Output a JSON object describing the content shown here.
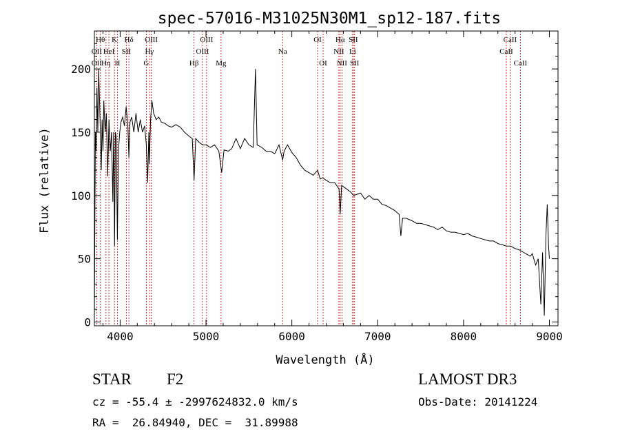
{
  "chart_data": {
    "type": "line",
    "title": "spec-57016-M31025N30M1_sp12-187.fits",
    "xlabel": "Wavelength (Å)",
    "ylabel": "Flux (relative)",
    "xlim": [
      3700,
      9100
    ],
    "ylim": [
      -3,
      230
    ],
    "xticks": [
      4000,
      5000,
      6000,
      7000,
      8000,
      9000
    ],
    "yticks": [
      0,
      50,
      100,
      150,
      200
    ],
    "grid": false,
    "series": [
      {
        "color": "#000000",
        "points": [
          [
            3700,
            4
          ],
          [
            3705,
            70
          ],
          [
            3712,
            150
          ],
          [
            3720,
            135
          ],
          [
            3730,
            185
          ],
          [
            3740,
            150
          ],
          [
            3750,
            200
          ],
          [
            3760,
            175
          ],
          [
            3770,
            150
          ],
          [
            3780,
            120
          ],
          [
            3790,
            160
          ],
          [
            3800,
            135
          ],
          [
            3810,
            175
          ],
          [
            3825,
            150
          ],
          [
            3840,
            165
          ],
          [
            3855,
            115
          ],
          [
            3870,
            160
          ],
          [
            3885,
            135
          ],
          [
            3900,
            150
          ],
          [
            3915,
            95
          ],
          [
            3925,
            150
          ],
          [
            3935,
            60
          ],
          [
            3945,
            150
          ],
          [
            3955,
            145
          ],
          [
            3968,
            65
          ],
          [
            3980,
            135
          ],
          [
            3995,
            150
          ],
          [
            4010,
            158
          ],
          [
            4030,
            162
          ],
          [
            4050,
            155
          ],
          [
            4070,
            170
          ],
          [
            4090,
            155
          ],
          [
            4102,
            130
          ],
          [
            4115,
            158
          ],
          [
            4135,
            162
          ],
          [
            4160,
            150
          ],
          [
            4185,
            165
          ],
          [
            4210,
            150
          ],
          [
            4235,
            160
          ],
          [
            4260,
            150
          ],
          [
            4285,
            155
          ],
          [
            4305,
            140
          ],
          [
            4320,
            110
          ],
          [
            4335,
            150
          ],
          [
            4340,
            125
          ],
          [
            4355,
            160
          ],
          [
            4370,
            175
          ],
          [
            4390,
            165
          ],
          [
            4420,
            160
          ],
          [
            4450,
            162
          ],
          [
            4480,
            158
          ],
          [
            4520,
            157
          ],
          [
            4560,
            155
          ],
          [
            4600,
            154
          ],
          [
            4650,
            156
          ],
          [
            4700,
            154
          ],
          [
            4750,
            150
          ],
          [
            4800,
            147
          ],
          [
            4840,
            145
          ],
          [
            4861,
            112
          ],
          [
            4880,
            145
          ],
          [
            4920,
            142
          ],
          [
            4960,
            140
          ],
          [
            5000,
            140
          ],
          [
            5050,
            138
          ],
          [
            5100,
            140
          ],
          [
            5150,
            135
          ],
          [
            5183,
            118
          ],
          [
            5210,
            136
          ],
          [
            5260,
            135
          ],
          [
            5300,
            137
          ],
          [
            5350,
            145
          ],
          [
            5400,
            137
          ],
          [
            5450,
            145
          ],
          [
            5500,
            140
          ],
          [
            5550,
            138
          ],
          [
            5577,
            200
          ],
          [
            5595,
            140
          ],
          [
            5650,
            138
          ],
          [
            5700,
            135
          ],
          [
            5750,
            135
          ],
          [
            5800,
            133
          ],
          [
            5850,
            140
          ],
          [
            5893,
            128
          ],
          [
            5910,
            135
          ],
          [
            5950,
            140
          ],
          [
            6000,
            134
          ],
          [
            6050,
            130
          ],
          [
            6100,
            124
          ],
          [
            6150,
            120
          ],
          [
            6200,
            118
          ],
          [
            6250,
            116
          ],
          [
            6300,
            120
          ],
          [
            6330,
            113
          ],
          [
            6360,
            114
          ],
          [
            6400,
            112
          ],
          [
            6450,
            110
          ],
          [
            6500,
            110
          ],
          [
            6550,
            105
          ],
          [
            6563,
            85
          ],
          [
            6580,
            108
          ],
          [
            6620,
            106
          ],
          [
            6680,
            103
          ],
          [
            6720,
            100
          ],
          [
            6760,
            101
          ],
          [
            6800,
            102
          ],
          [
            6850,
            97
          ],
          [
            6900,
            100
          ],
          [
            6950,
            97
          ],
          [
            7000,
            97
          ],
          [
            7050,
            93
          ],
          [
            7100,
            92
          ],
          [
            7150,
            90
          ],
          [
            7200,
            88
          ],
          [
            7250,
            85
          ],
          [
            7270,
            68
          ],
          [
            7290,
            82
          ],
          [
            7330,
            82
          ],
          [
            7400,
            80
          ],
          [
            7450,
            78
          ],
          [
            7500,
            78
          ],
          [
            7550,
            77
          ],
          [
            7600,
            76
          ],
          [
            7650,
            75
          ],
          [
            7700,
            73
          ],
          [
            7750,
            75
          ],
          [
            7800,
            72
          ],
          [
            7850,
            71
          ],
          [
            7900,
            71
          ],
          [
            7950,
            70
          ],
          [
            8000,
            69
          ],
          [
            8050,
            70
          ],
          [
            8100,
            68
          ],
          [
            8150,
            67
          ],
          [
            8200,
            66
          ],
          [
            8250,
            65
          ],
          [
            8300,
            64
          ],
          [
            8350,
            64
          ],
          [
            8400,
            62
          ],
          [
            8450,
            61
          ],
          [
            8500,
            60
          ],
          [
            8550,
            60
          ],
          [
            8600,
            58
          ],
          [
            8650,
            57
          ],
          [
            8700,
            55
          ],
          [
            8750,
            53
          ],
          [
            8780,
            52
          ],
          [
            8800,
            54
          ],
          [
            8840,
            45
          ],
          [
            8870,
            50
          ],
          [
            8900,
            14
          ],
          [
            8920,
            55
          ],
          [
            8940,
            5
          ],
          [
            8960,
            70
          ],
          [
            8975,
            93
          ],
          [
            8990,
            60
          ],
          [
            9000,
            50
          ]
        ]
      }
    ],
    "lines": [
      {
        "x": 3727,
        "labels": [
          {
            "t": "OII",
            "row": 2
          },
          {
            "t": "OII",
            "row": 3
          }
        ]
      },
      {
        "x": 3770,
        "labels": [
          {
            "t": "Hθ",
            "row": 1
          }
        ]
      },
      {
        "x": 3835,
        "labels": [
          {
            "t": "Hη",
            "row": 3
          }
        ]
      },
      {
        "x": 3869,
        "labels": [
          {
            "t": "HeI",
            "row": 2
          }
        ]
      },
      {
        "x": 3934,
        "labels": [
          {
            "t": "K",
            "row": 1
          }
        ]
      },
      {
        "x": 3969,
        "labels": [
          {
            "t": "H",
            "row": 3
          }
        ]
      },
      {
        "x": 4072,
        "labels": [
          {
            "t": "SII",
            "row": 2
          }
        ]
      },
      {
        "x": 4102,
        "labels": [
          {
            "t": "Hδ",
            "row": 1
          }
        ]
      },
      {
        "x": 4305,
        "labels": [
          {
            "t": "G",
            "row": 3
          }
        ]
      },
      {
        "x": 4341,
        "labels": [
          {
            "t": "Hγ",
            "row": 2
          }
        ]
      },
      {
        "x": 4363,
        "labels": [
          {
            "t": "OIII",
            "row": 1
          }
        ]
      },
      {
        "x": 4861,
        "labels": [
          {
            "t": "Hβ",
            "row": 3
          }
        ]
      },
      {
        "x": 4959,
        "labels": [
          {
            "t": "OIII",
            "row": 2
          }
        ]
      },
      {
        "x": 5007,
        "labels": [
          {
            "t": "OIII",
            "row": 1
          }
        ]
      },
      {
        "x": 5175,
        "labels": [
          {
            "t": "Mg",
            "row": 3
          }
        ]
      },
      {
        "x": 5893,
        "labels": [
          {
            "t": "Na",
            "row": 2
          }
        ]
      },
      {
        "x": 6300,
        "labels": [
          {
            "t": "OI",
            "row": 1
          }
        ]
      },
      {
        "x": 6364,
        "labels": [
          {
            "t": "OI",
            "row": 3
          }
        ]
      },
      {
        "x": 6548,
        "labels": [
          {
            "t": "NII",
            "row": 2
          }
        ]
      },
      {
        "x": 6563,
        "labels": [
          {
            "t": "Hα",
            "row": 1
          }
        ]
      },
      {
        "x": 6583,
        "labels": [
          {
            "t": "NII",
            "row": 3
          }
        ]
      },
      {
        "x": 6708,
        "labels": [
          {
            "t": "Li",
            "row": 2
          }
        ]
      },
      {
        "x": 6716,
        "labels": [
          {
            "t": "SII",
            "row": 1
          }
        ]
      },
      {
        "x": 6731,
        "labels": [
          {
            "t": "SII",
            "row": 3
          }
        ]
      },
      {
        "x": 8498,
        "labels": [
          {
            "t": "CaII",
            "row": 2
          }
        ]
      },
      {
        "x": 8542,
        "labels": [
          {
            "t": "CaII",
            "row": 1
          }
        ]
      },
      {
        "x": 8662,
        "labels": [
          {
            "t": "CaII",
            "row": 3
          }
        ]
      }
    ],
    "line_color": "#cc0000"
  },
  "info": {
    "class": "STAR",
    "subclass": "F2",
    "survey": "LAMOST DR3",
    "cz": "cz = -55.4 ± -2997624832.0 km/s",
    "obsdate": "Obs-Date: 20141224",
    "radec": "RA =  26.84940, DEC =  31.89988"
  }
}
